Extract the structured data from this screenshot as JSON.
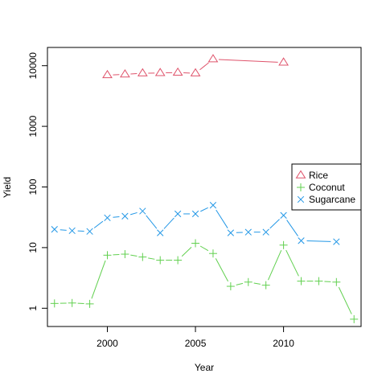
{
  "chart_data": {
    "type": "line",
    "xlabel": "Year",
    "ylabel": "Yield",
    "x_scale": "linear",
    "y_scale": "log",
    "xlim": [
      1996.6,
      2014.4
    ],
    "ylim": [
      0.5,
      20000
    ],
    "x_ticks": [
      2000,
      2005,
      2010
    ],
    "x_tick_labels": [
      "2000",
      "2005",
      "2010"
    ],
    "y_ticks": [
      1,
      10,
      100,
      1000,
      10000
    ],
    "y_tick_labels": [
      "1",
      "10",
      "100",
      "1000",
      "10000"
    ],
    "legend_position": "right",
    "series": [
      {
        "name": "Rice",
        "marker": "triangle",
        "color": "#DF536B",
        "points": [
          [
            2000,
            7000
          ],
          [
            2001,
            7200
          ],
          [
            2002,
            7500
          ],
          [
            2003,
            7600
          ],
          [
            2004,
            7700
          ],
          [
            2005,
            7500
          ],
          [
            2006,
            12800
          ],
          [
            2010,
            11300
          ]
        ]
      },
      {
        "name": "Coconut",
        "marker": "plus",
        "color": "#61D04F",
        "points": [
          [
            1997,
            1.2
          ],
          [
            1998,
            1.22
          ],
          [
            1999,
            1.18
          ],
          [
            2000,
            7.5
          ],
          [
            2001,
            7.8
          ],
          [
            2002,
            7.0
          ],
          [
            2003,
            6.2
          ],
          [
            2004,
            6.2
          ],
          [
            2005,
            11.8
          ],
          [
            2006,
            8.0
          ],
          [
            2007,
            2.3
          ],
          [
            2008,
            2.7
          ],
          [
            2009,
            2.4
          ],
          [
            2010,
            11.0
          ],
          [
            2011,
            2.8
          ],
          [
            2012,
            2.8
          ],
          [
            2013,
            2.7
          ],
          [
            2014,
            0.66
          ]
        ]
      },
      {
        "name": "Sugarcane",
        "marker": "cross",
        "color": "#2297E6",
        "points": [
          [
            1997,
            20
          ],
          [
            1998,
            19
          ],
          [
            1999,
            18.5
          ],
          [
            2000,
            31
          ],
          [
            2001,
            33
          ],
          [
            2002,
            40
          ],
          [
            2003,
            17.5
          ],
          [
            2004,
            36
          ],
          [
            2005,
            36
          ],
          [
            2006,
            50
          ],
          [
            2007,
            17.5
          ],
          [
            2008,
            18
          ],
          [
            2009,
            18
          ],
          [
            2010,
            34
          ],
          [
            2011,
            13
          ],
          [
            2013,
            12.5
          ]
        ]
      }
    ]
  }
}
